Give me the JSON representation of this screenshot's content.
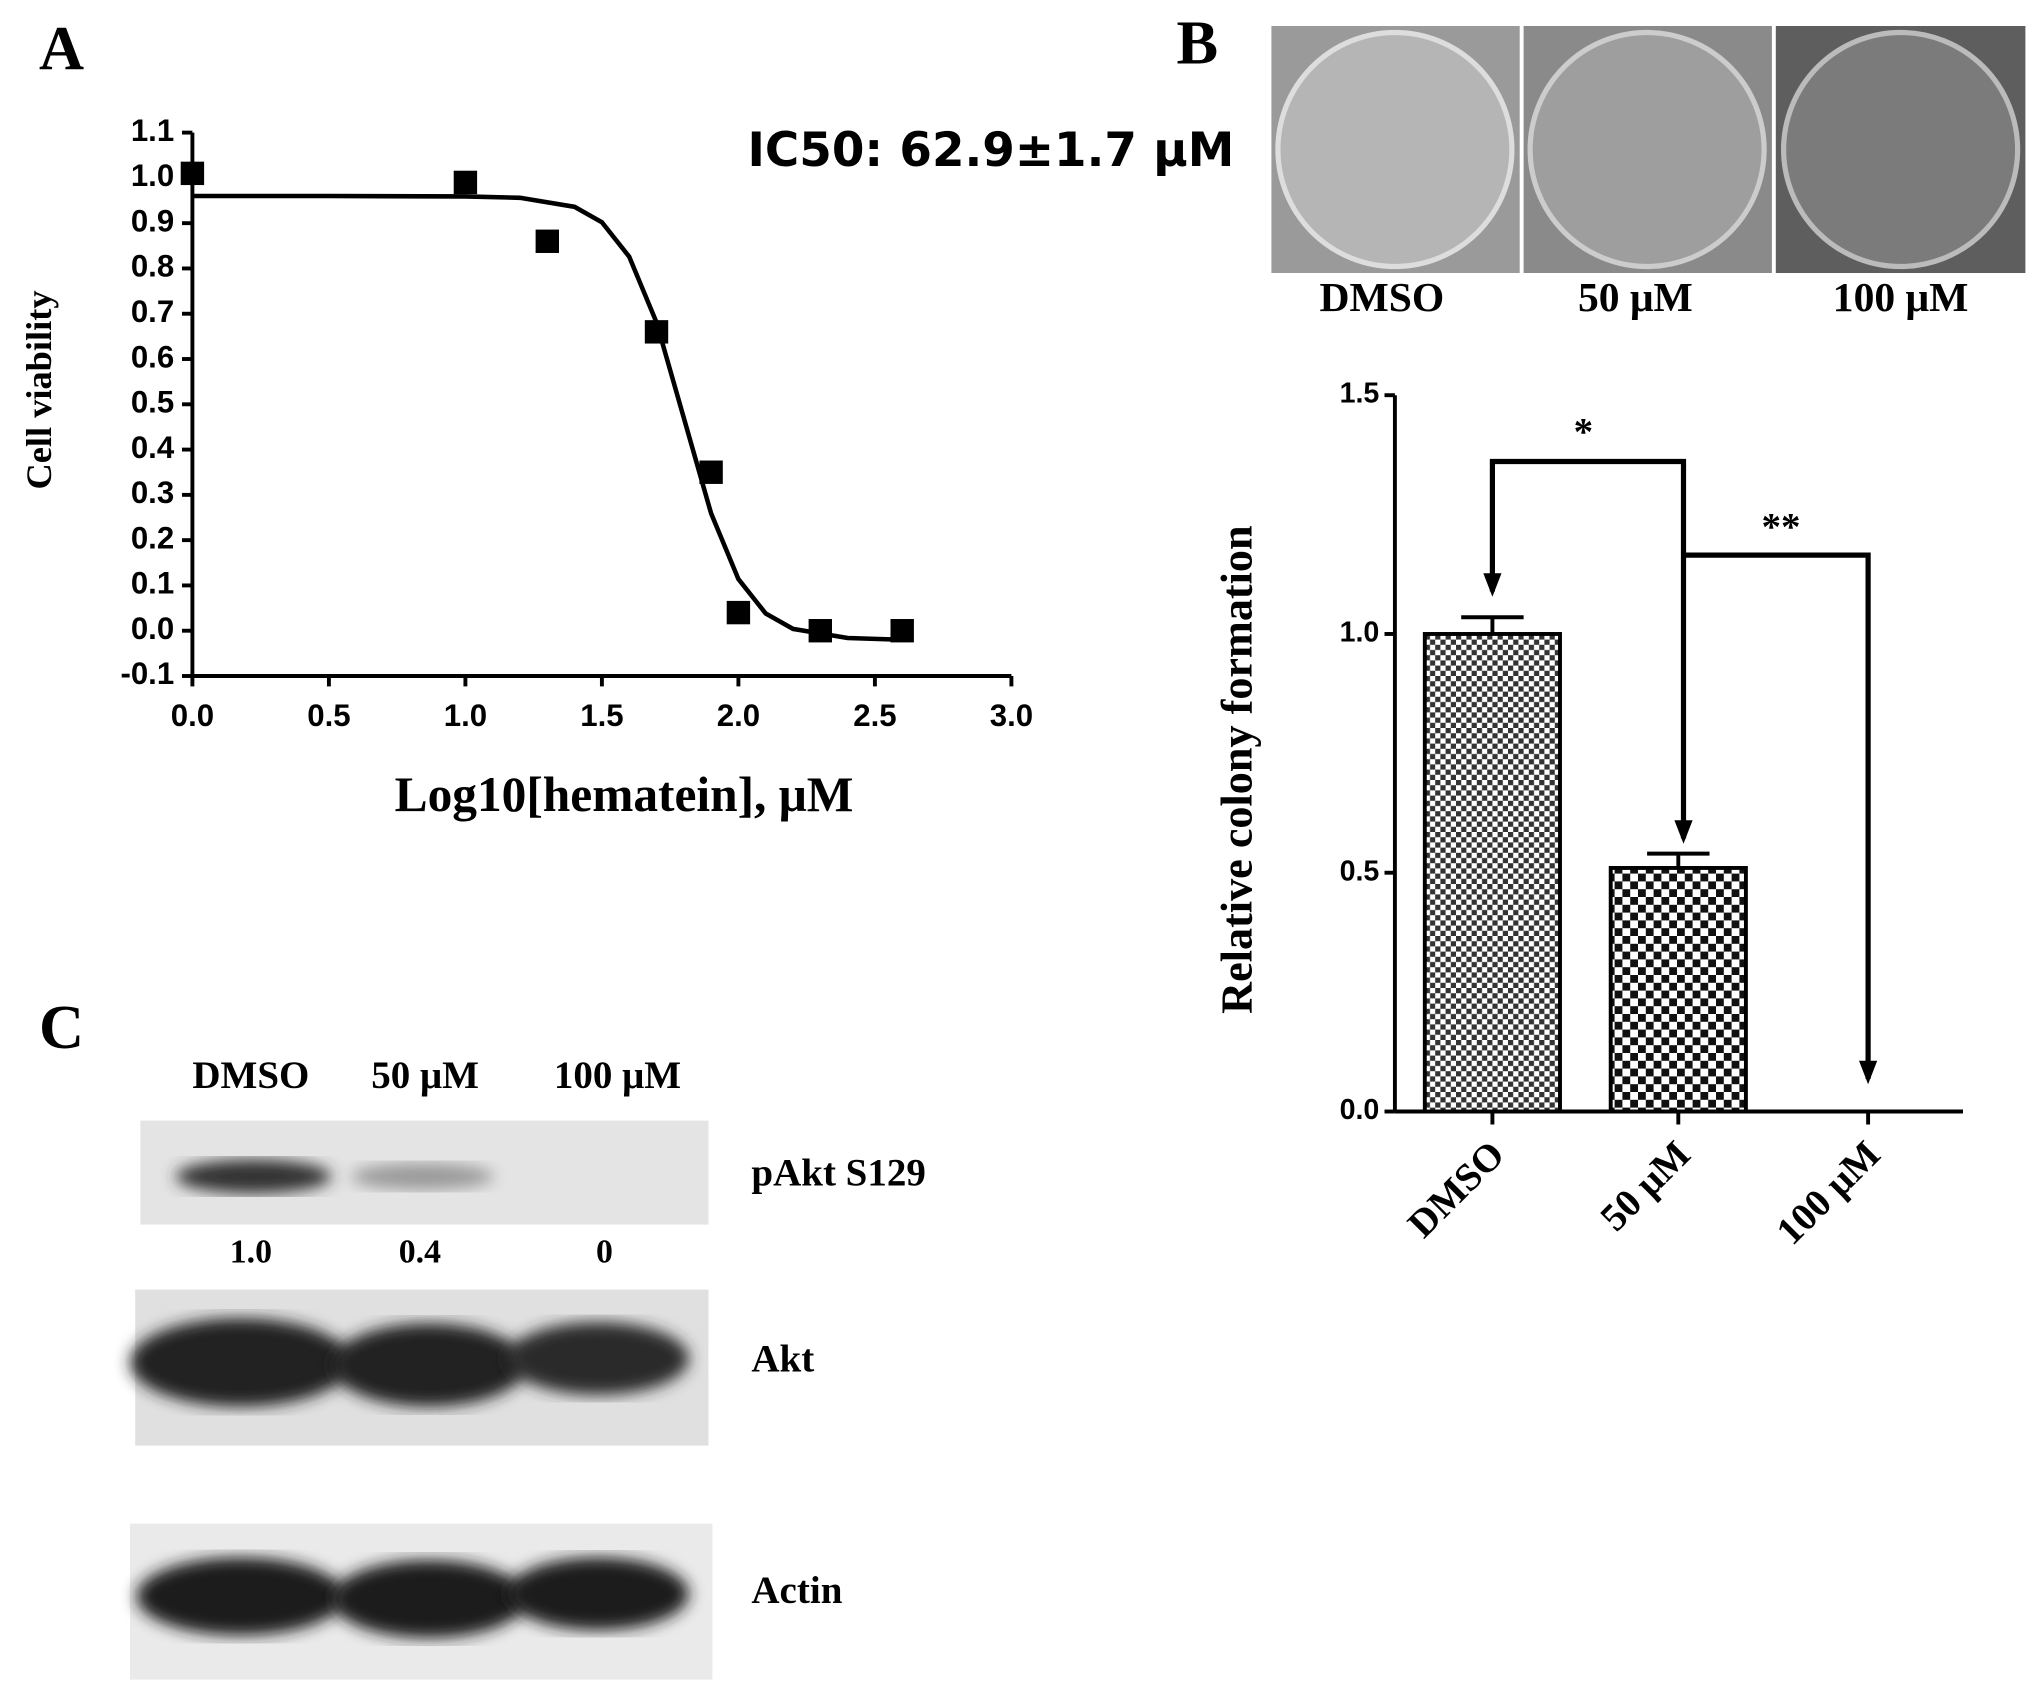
{
  "panels": {
    "a": "A",
    "b": "B",
    "c": "C"
  },
  "chart_data": [
    {
      "type": "scatter",
      "annotation": "IC50: 62.9±1.7 μM",
      "x_label": "Log10[hematein], μM",
      "y_label": "Cell viability",
      "color": "#000000",
      "points": {
        "x": [
          0,
          1,
          1.3,
          1.7,
          1.9,
          2.0,
          2.3,
          2.6
        ],
        "y": [
          1.01,
          0.99,
          0.86,
          0.66,
          0.35,
          0.04,
          0.0,
          0.0
        ]
      },
      "fit": {
        "x": [
          0,
          0.5,
          1.0,
          1.2,
          1.4,
          1.5,
          1.6,
          1.7,
          1.8,
          1.9,
          2.0,
          2.1,
          2.2,
          2.4,
          2.6
        ],
        "y": [
          0.96,
          0.96,
          0.959,
          0.956,
          0.936,
          0.902,
          0.826,
          0.681,
          0.47,
          0.259,
          0.114,
          0.038,
          0.004,
          -0.016,
          -0.02
        ]
      },
      "xlim": [
        0,
        3
      ],
      "xticks": [
        {
          "value": 0,
          "label": "0.0"
        },
        0.5,
        {
          "value": 1,
          "label": "1.0"
        },
        1.5,
        {
          "value": 2,
          "label": "2.0"
        },
        2.5,
        {
          "value": 3,
          "label": "3.0"
        }
      ],
      "ylim": [
        -0.1,
        1.1
      ],
      "yticks": [
        -0.1,
        {
          "value": 0,
          "label": "0.0"
        },
        0.1,
        0.2,
        0.3,
        0.4,
        0.5,
        0.6,
        0.7,
        0.8,
        0.9,
        {
          "value": 1,
          "label": "1.0"
        },
        1.1
      ]
    },
    {
      "type": "bar",
      "y_label": "Relative colony formation",
      "categories": [
        "DMSO",
        "50 μM",
        "100 μM"
      ],
      "values": [
        1.0,
        0.51,
        0.0
      ],
      "errors": [
        0.035,
        0.03,
        0
      ],
      "color": "#000000",
      "ylim": [
        0,
        1.5
      ],
      "yticks": [
        {
          "value": 0,
          "label": "0.0"
        },
        0.5,
        {
          "value": 1,
          "label": "1.0"
        },
        1.5
      ],
      "significance": [
        "*",
        "**"
      ]
    }
  ],
  "plates": [
    "DMSO",
    "50 μM",
    "100 μM"
  ],
  "blot": {
    "lanes": [
      "DMSO",
      "50 μM",
      "100 μM"
    ],
    "rows": [
      "pAkt S129",
      "Akt",
      "Actin"
    ],
    "quantification": [
      "1.0",
      "0.4",
      "0"
    ]
  }
}
